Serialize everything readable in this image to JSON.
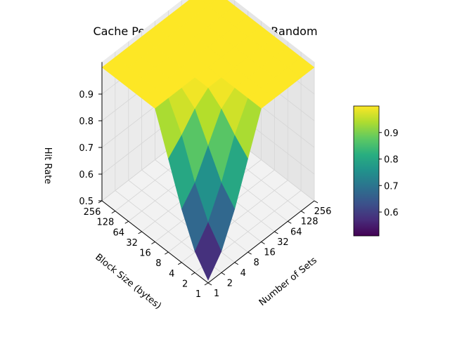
{
  "chart_data": {
    "type": "surface",
    "title": "Cache Performance Analysis of Random",
    "xlabel": "Number of Sets",
    "ylabel": "Block Size (bytes)",
    "zlabel": "Hit Rate",
    "x_ticks": [
      "1",
      "2",
      "4",
      "8",
      "16",
      "32",
      "64",
      "128",
      "256"
    ],
    "y_ticks": [
      "1",
      "2",
      "4",
      "8",
      "16",
      "32",
      "64",
      "128",
      "256"
    ],
    "z_ticks": [
      "0.5",
      "0.6",
      "0.7",
      "0.8",
      "0.9"
    ],
    "zlim": [
      0.5,
      1.0
    ],
    "colorbar": {
      "colormap": "viridis",
      "range": [
        0.51,
        1.0
      ],
      "ticks": [
        "0.6",
        "0.7",
        "0.8",
        "0.9"
      ]
    },
    "x": [
      1,
      2,
      4,
      8,
      16,
      32,
      64,
      128,
      256
    ],
    "y": [
      1,
      2,
      4,
      8,
      16,
      32,
      64,
      128,
      256
    ],
    "z": [
      [
        0.51,
        0.58,
        0.7,
        0.85,
        1.0,
        1.0,
        1.0,
        1.0,
        1.0
      ],
      [
        0.58,
        0.65,
        0.76,
        0.9,
        1.0,
        1.0,
        1.0,
        1.0,
        1.0
      ],
      [
        0.7,
        0.76,
        0.86,
        0.96,
        1.0,
        1.0,
        1.0,
        1.0,
        1.0
      ],
      [
        0.85,
        0.9,
        0.96,
        1.0,
        1.0,
        1.0,
        1.0,
        1.0,
        1.0
      ],
      [
        1.0,
        1.0,
        1.0,
        1.0,
        1.0,
        1.0,
        1.0,
        1.0,
        1.0
      ],
      [
        1.0,
        1.0,
        1.0,
        1.0,
        1.0,
        1.0,
        1.0,
        1.0,
        1.0
      ],
      [
        1.0,
        1.0,
        1.0,
        1.0,
        1.0,
        1.0,
        1.0,
        1.0,
        1.0
      ],
      [
        1.0,
        1.0,
        1.0,
        1.0,
        1.0,
        1.0,
        1.0,
        1.0,
        1.0
      ],
      [
        1.0,
        1.0,
        1.0,
        1.0,
        1.0,
        1.0,
        1.0,
        1.0,
        1.0
      ]
    ],
    "grid": true
  }
}
